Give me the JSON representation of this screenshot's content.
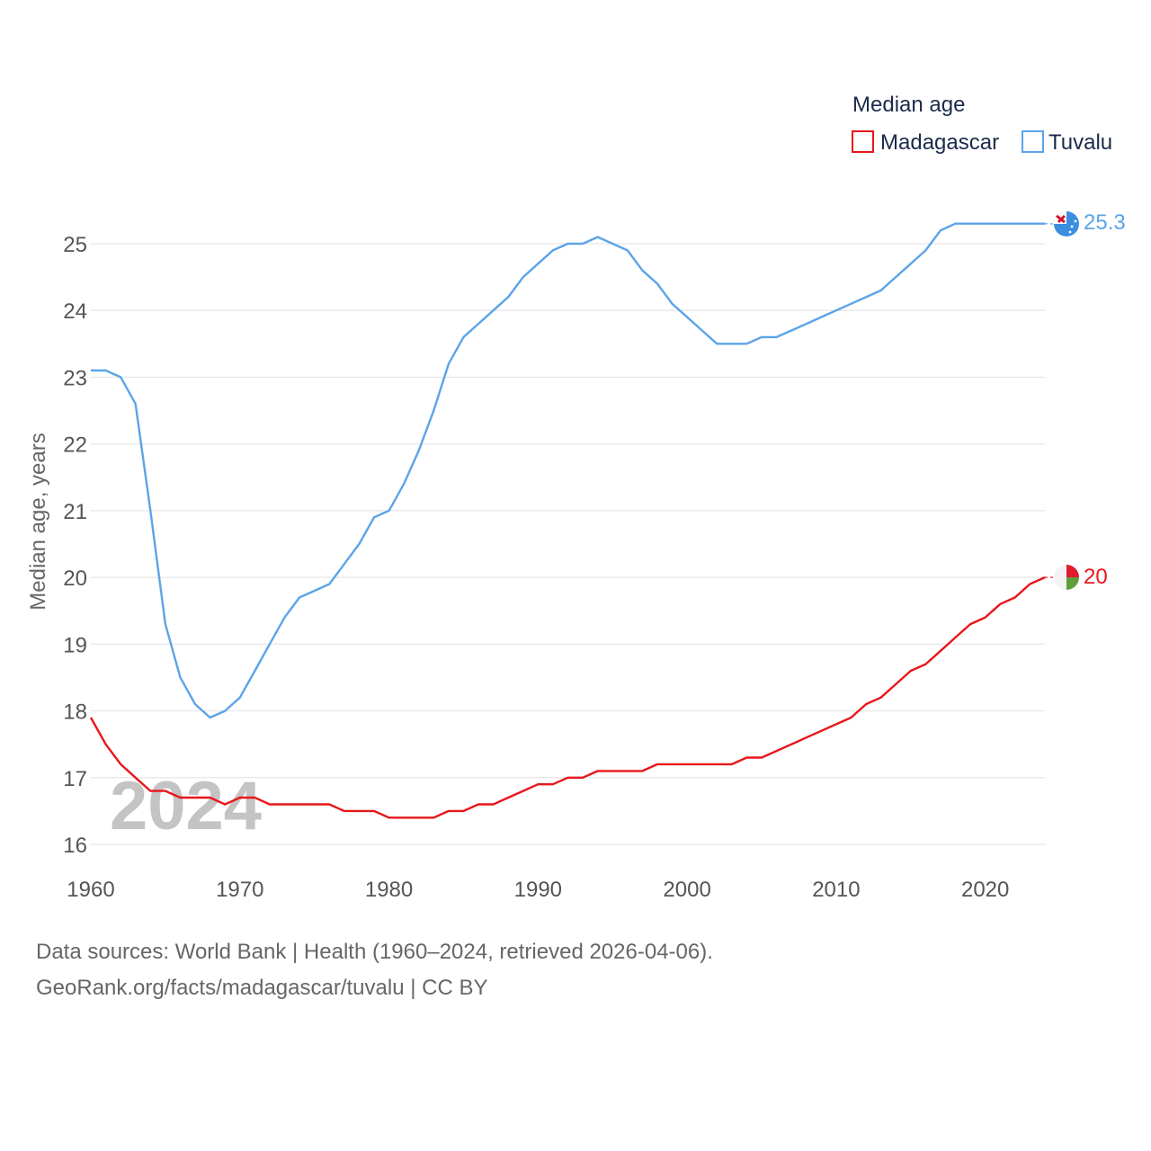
{
  "chart_data": {
    "type": "line",
    "legend_title": "Median age",
    "ylabel": "Median age, years",
    "year_label": "2024",
    "xlim": [
      1960,
      2024
    ],
    "ylim": [
      16,
      25.9
    ],
    "x_ticks": [
      1960,
      1970,
      1980,
      1990,
      2000,
      2010,
      2020
    ],
    "y_ticks": [
      16,
      17,
      18,
      19,
      20,
      21,
      22,
      23,
      24,
      25
    ],
    "x": [
      1960,
      1961,
      1962,
      1963,
      1964,
      1965,
      1966,
      1967,
      1968,
      1969,
      1970,
      1971,
      1972,
      1973,
      1974,
      1975,
      1976,
      1977,
      1978,
      1979,
      1980,
      1981,
      1982,
      1983,
      1984,
      1985,
      1986,
      1987,
      1988,
      1989,
      1990,
      1991,
      1992,
      1993,
      1994,
      1995,
      1996,
      1997,
      1998,
      1999,
      2000,
      2001,
      2002,
      2003,
      2004,
      2005,
      2006,
      2007,
      2008,
      2009,
      2010,
      2011,
      2012,
      2013,
      2014,
      2015,
      2016,
      2017,
      2018,
      2019,
      2020,
      2021,
      2022,
      2023,
      2024
    ],
    "series": [
      {
        "name": "Madagascar",
        "color": "#e8161b",
        "end_label": "20",
        "values": [
          17.9,
          17.5,
          17.2,
          17.0,
          16.8,
          16.8,
          16.7,
          16.7,
          16.7,
          16.6,
          16.7,
          16.7,
          16.6,
          16.6,
          16.6,
          16.6,
          16.6,
          16.5,
          16.5,
          16.5,
          16.4,
          16.4,
          16.4,
          16.4,
          16.5,
          16.5,
          16.6,
          16.6,
          16.7,
          16.8,
          16.9,
          16.9,
          17.0,
          17.0,
          17.1,
          17.1,
          17.1,
          17.1,
          17.2,
          17.2,
          17.2,
          17.2,
          17.2,
          17.2,
          17.3,
          17.3,
          17.4,
          17.5,
          17.6,
          17.7,
          17.8,
          17.9,
          18.1,
          18.2,
          18.4,
          18.6,
          18.7,
          18.9,
          19.1,
          19.3,
          19.4,
          19.6,
          19.7,
          19.9,
          20.0
        ]
      },
      {
        "name": "Tuvalu",
        "color": "#5ba4e8",
        "end_label": "25.3",
        "values": [
          23.1,
          23.1,
          23.0,
          22.6,
          21.0,
          19.3,
          18.5,
          18.1,
          17.9,
          18.0,
          18.2,
          18.6,
          19.0,
          19.4,
          19.7,
          19.8,
          19.9,
          20.2,
          20.5,
          20.9,
          21.0,
          21.4,
          21.9,
          22.5,
          23.2,
          23.6,
          23.8,
          24.0,
          24.2,
          24.5,
          24.7,
          24.9,
          25.0,
          25.0,
          25.1,
          25.0,
          24.9,
          24.6,
          24.4,
          24.1,
          23.9,
          23.7,
          23.5,
          23.5,
          23.5,
          23.6,
          23.6,
          23.7,
          23.8,
          23.9,
          24.0,
          24.1,
          24.2,
          24.3,
          24.5,
          24.7,
          24.9,
          25.2,
          25.3,
          25.3,
          25.3,
          25.3,
          25.3,
          25.3,
          25.3
        ]
      }
    ]
  },
  "footer": {
    "source_line": "Data sources: World Bank | Health (1960–2024, retrieved 2026-04-06).",
    "url_line": "GeoRank.org/facts/madagascar/tuvalu | CC BY"
  }
}
